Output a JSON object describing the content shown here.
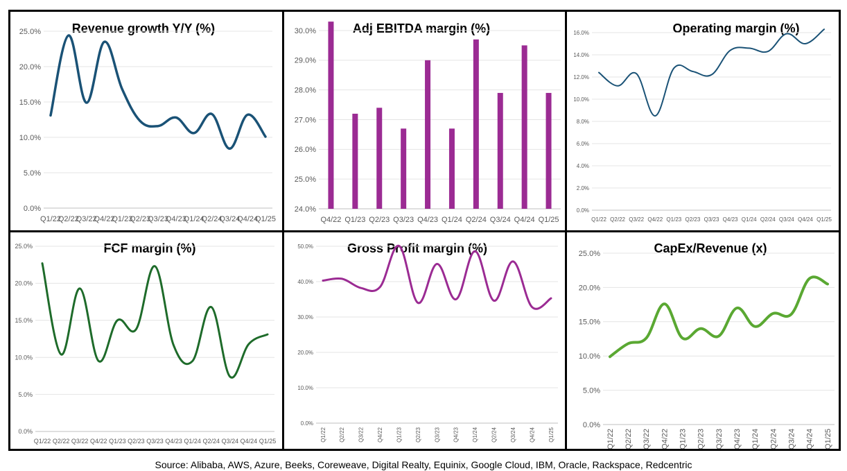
{
  "source_note": "Source: Alibaba, AWS, Azure, Beeks, Coreweave, Digital Realty, Equinix, Google Cloud, IBM, Oracle, Rackspace, Redcentric",
  "chart_data": [
    {
      "id": "revenue-growth",
      "type": "line",
      "title": "Revenue growth Y/Y (%)",
      "color": "#1a5276",
      "categories": [
        "Q1/22",
        "Q2/22",
        "Q3/22",
        "Q4/22",
        "Q1/23",
        "Q2/23",
        "Q3/23",
        "Q4/23",
        "Q1/24",
        "Q2/24",
        "Q3/24",
        "Q4/24",
        "Q1/25"
      ],
      "values": [
        13.1,
        24.4,
        14.9,
        23.5,
        16.8,
        12.3,
        11.6,
        12.8,
        10.6,
        13.3,
        8.4,
        13.2,
        10.1
      ],
      "ylim": [
        0,
        25
      ],
      "yticks": [
        "0.0%",
        "5.0%",
        "10.0%",
        "15.0%",
        "20.0%",
        "25.0%"
      ],
      "xlabel": "",
      "ylabel": "",
      "grid": true,
      "legend": "none"
    },
    {
      "id": "adj-ebitda-margin",
      "type": "bar",
      "title": "Adj EBITDA margin (%)",
      "color": "#9b2b93",
      "categories": [
        "Q4/22",
        "Q1/23",
        "Q2/23",
        "Q3/23",
        "Q4/23",
        "Q1/24",
        "Q2/24",
        "Q3/24",
        "Q4/24",
        "Q1/25"
      ],
      "values": [
        30.3,
        27.2,
        27.4,
        26.7,
        29.0,
        26.7,
        29.7,
        27.9,
        29.5,
        27.9
      ],
      "ylim": [
        24,
        30
      ],
      "yticks": [
        "24.0%",
        "25.0%",
        "26.0%",
        "27.0%",
        "28.0%",
        "29.0%",
        "30.0%"
      ],
      "xlabel": "",
      "ylabel": "",
      "grid": true,
      "legend": "none"
    },
    {
      "id": "operating-margin",
      "type": "line",
      "title": "Operating margin (%)",
      "color": "#1a5276",
      "categories": [
        "Q1/22",
        "Q2/22",
        "Q3/22",
        "Q4/22",
        "Q1/23",
        "Q2/23",
        "Q3/23",
        "Q4/23",
        "Q1/24",
        "Q2/24",
        "Q3/24",
        "Q4/24",
        "Q1/25"
      ],
      "values": [
        12.4,
        11.2,
        12.3,
        8.5,
        12.8,
        12.5,
        12.2,
        14.4,
        14.6,
        14.3,
        15.9,
        15.0,
        16.3
      ],
      "ylim": [
        0,
        16
      ],
      "yticks": [
        "0.0%",
        "2.0%",
        "4.0%",
        "6.0%",
        "8.0%",
        "10.0%",
        "12.0%",
        "14.0%",
        "16.0%"
      ],
      "xlabel": "",
      "ylabel": "",
      "grid": true,
      "legend": "none"
    },
    {
      "id": "fcf-margin",
      "type": "line",
      "title": "FCF margin (%)",
      "color": "#1e6b2a",
      "categories": [
        "Q1/22",
        "Q2/22",
        "Q3/22",
        "Q4/22",
        "Q1/23",
        "Q2/23",
        "Q3/23",
        "Q4/23",
        "Q1/24",
        "Q2/24",
        "Q3/24",
        "Q4/24",
        "Q1/25"
      ],
      "values": [
        22.7,
        10.4,
        19.3,
        9.5,
        15.0,
        13.8,
        22.3,
        11.6,
        9.5,
        16.8,
        7.4,
        11.8,
        13.1
      ],
      "ylim": [
        0,
        25
      ],
      "yticks": [
        "0.0%",
        "5.0%",
        "10.0%",
        "15.0%",
        "20.0%",
        "25.0%"
      ],
      "xlabel": "",
      "ylabel": "",
      "grid": true,
      "legend": "none"
    },
    {
      "id": "gross-profit-margin",
      "type": "line",
      "title": "Gross Profit margin (%)",
      "color": "#9b2b93",
      "categories": [
        "Q1/22",
        "Q2/22",
        "Q3/22",
        "Q4/22",
        "Q1/23",
        "Q2/23",
        "Q3/23",
        "Q4/23",
        "Q1/24",
        "Q2/24",
        "Q3/24",
        "Q4/24",
        "Q1/25"
      ],
      "values": [
        40.3,
        40.8,
        38.2,
        38.5,
        50.1,
        34.0,
        45.0,
        35.0,
        48.6,
        34.6,
        45.7,
        32.8,
        35.3
      ],
      "ylim": [
        0,
        50
      ],
      "yticks": [
        "0.0%",
        "10.0%",
        "20.0%",
        "30.0%",
        "40.0%",
        "50.0%"
      ],
      "xlabel": "",
      "ylabel": "",
      "grid": true,
      "legend": "none"
    },
    {
      "id": "capex-revenue",
      "type": "line",
      "title": "CapEx/Revenue (x)",
      "color": "#5aa832",
      "categories": [
        "Q1/22",
        "Q2/22",
        "Q3/22",
        "Q4/22",
        "Q1/23",
        "Q2/23",
        "Q3/23",
        "Q4/23",
        "Q1/24",
        "Q2/24",
        "Q3/24",
        "Q4/24",
        "Q1/25"
      ],
      "values": [
        9.9,
        11.8,
        12.6,
        17.6,
        12.6,
        14.0,
        12.9,
        17.0,
        14.3,
        16.2,
        16.1,
        21.3,
        20.5
      ],
      "ylim": [
        0,
        25
      ],
      "yticks": [
        "0.0%",
        "5.0%",
        "10.0%",
        "15.0%",
        "20.0%",
        "25.0%"
      ],
      "xlabel": "",
      "ylabel": "",
      "grid": true,
      "legend": "none"
    }
  ]
}
